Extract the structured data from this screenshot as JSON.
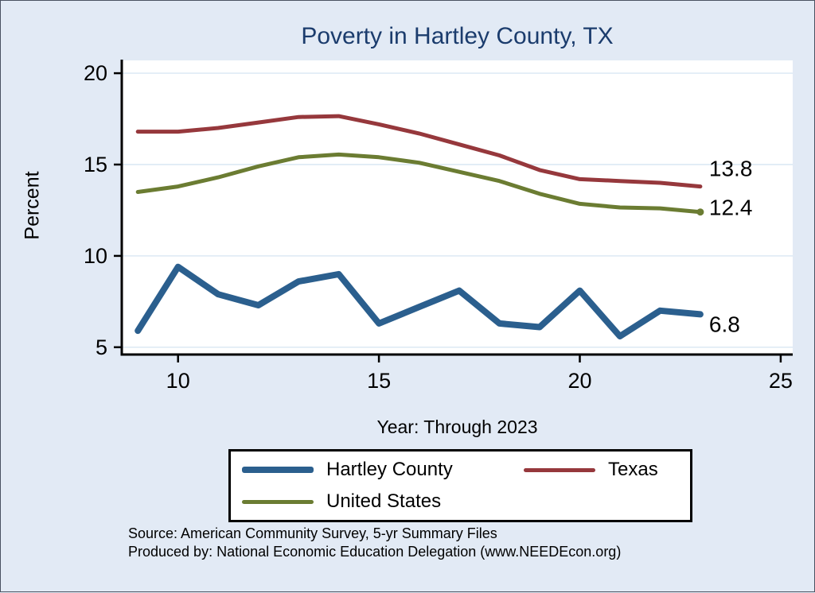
{
  "title": "Poverty in Hartley County, TX",
  "axes": {
    "xlabel": "Year: Through 2023",
    "ylabel": "Percent"
  },
  "legend": {
    "items": [
      {
        "label": "Hartley County",
        "series": "hartley"
      },
      {
        "label": "Texas",
        "series": "texas"
      },
      {
        "label": "United States",
        "series": "us"
      }
    ]
  },
  "notes": {
    "line1": "Source: American Community Survey, 5-yr Summary Files",
    "line2": "Produced by: National Economic Education Delegation (www.NEEDEcon.org)"
  },
  "colors": {
    "background": "#e2eaf5",
    "plot_background": "#ffffff",
    "grid": "#d9e7f3",
    "axis": "#000000",
    "text": "#000000",
    "title": "#1b3c6d"
  },
  "chart_data": {
    "type": "line",
    "title": "Poverty in Hartley County, TX",
    "xlabel": "Year: Through 2023",
    "ylabel": "Percent",
    "x": [
      9,
      10,
      11,
      12,
      13,
      14,
      15,
      16,
      17,
      18,
      19,
      20,
      21,
      22,
      23
    ],
    "series": [
      {
        "name": "Hartley County",
        "key": "hartley",
        "color": "#2b5f8e",
        "width": 8,
        "values": [
          5.9,
          9.4,
          7.9,
          7.3,
          8.6,
          9.0,
          6.3,
          7.2,
          8.1,
          6.3,
          6.1,
          8.1,
          5.6,
          7.0,
          6.8
        ],
        "end_label": "6.8",
        "end_label_dy": 13
      },
      {
        "name": "Texas",
        "key": "texas",
        "color": "#96383c",
        "width": 5,
        "values": [
          16.8,
          16.8,
          17.0,
          17.3,
          17.6,
          17.65,
          17.2,
          16.7,
          16.1,
          15.5,
          14.7,
          14.2,
          14.1,
          14.0,
          13.8
        ],
        "end_label": "13.8",
        "end_label_dy": -22
      },
      {
        "name": "United States",
        "key": "us",
        "color": "#6b7c32",
        "width": 5,
        "values": [
          13.5,
          13.8,
          14.3,
          14.9,
          15.4,
          15.55,
          15.4,
          15.1,
          14.6,
          14.1,
          13.4,
          12.85,
          12.65,
          12.6,
          12.4
        ],
        "end_label": "12.4",
        "end_label_dy": -5,
        "end_marker": true
      }
    ],
    "xticks": [
      10,
      15,
      20,
      25
    ],
    "yticks": [
      5,
      10,
      15,
      20
    ],
    "xlim": [
      8.6,
      25.3
    ],
    "ylim": [
      4.6,
      20.7
    ],
    "grid": "horizontal",
    "legend_position": "bottom"
  }
}
